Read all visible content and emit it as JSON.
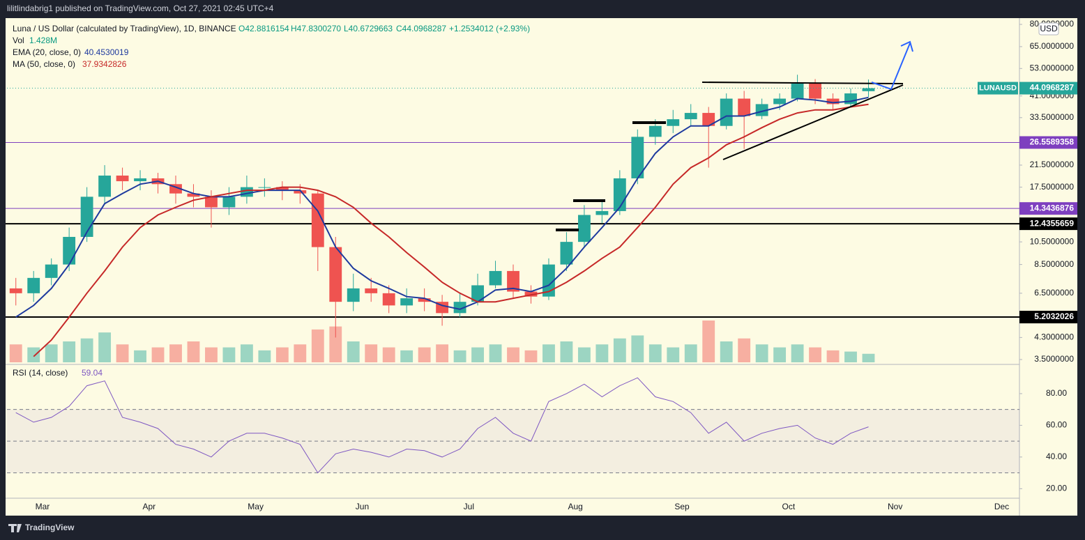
{
  "header": {
    "publisher": "lilitlindabrig1 published on TradingView.com, Oct 27, 2021 02:45 UTC+4",
    "brand": "TradingView",
    "currency_button": "USD"
  },
  "chart_data": [
    {
      "type": "candlestick",
      "title": "Luna / US Dollar (calculated by TradingView), 1D, BINANCE",
      "ohlc_texts": [
        "O42.8816154",
        "H47.8300270",
        "L40.6729663",
        "C44.0968287",
        "+1.2534012 (+2.93%)"
      ],
      "symbol": "LUNAUSD",
      "up_color": "#26a69a",
      "down_color": "#ef5350",
      "log_scale": true,
      "categories": [
        null,
        null,
        "Mar",
        null,
        null,
        null,
        null,
        null,
        "Apr",
        null,
        null,
        null,
        null,
        null,
        "May",
        null,
        null,
        null,
        null,
        null,
        "Jun",
        null,
        null,
        null,
        null,
        null,
        "Jul",
        null,
        null,
        null,
        null,
        null,
        "Aug",
        null,
        null,
        null,
        null,
        null,
        "Sep",
        null,
        null,
        null,
        null,
        null,
        "Oct",
        null,
        null,
        null,
        null,
        null,
        "Nov",
        null,
        null,
        null,
        null,
        null,
        "Dec"
      ],
      "open": [
        6.8,
        6.5,
        7.5,
        8.5,
        11,
        16,
        19.5,
        18.5,
        19,
        18,
        16.5,
        16,
        14.5,
        16,
        17.5,
        17.5,
        17,
        16.5,
        10,
        6,
        6.8,
        6.5,
        5.8,
        6.2,
        6,
        5.4,
        6,
        7,
        8,
        6.6,
        6.3,
        8.5,
        10.5,
        13.5,
        14,
        19,
        28,
        31,
        33,
        35,
        31,
        40,
        34,
        38,
        40,
        46,
        40,
        38,
        42.8816154,
        null,
        null,
        null,
        null,
        null,
        null,
        null,
        null
      ],
      "high": [
        7.5,
        8,
        9,
        12,
        17.5,
        21.5,
        21,
        20.5,
        20,
        19.5,
        18,
        17,
        17.5,
        19.5,
        19,
        18.5,
        18,
        17,
        11,
        7.8,
        7.5,
        7,
        6.8,
        6.8,
        6.4,
        6.5,
        7.8,
        8.8,
        8.5,
        7,
        9,
        11.5,
        14.8,
        15.5,
        20.5,
        30,
        33,
        36,
        38,
        37,
        42,
        43,
        40,
        42,
        50,
        48,
        42,
        44,
        47.83,
        null,
        null,
        null,
        null,
        null,
        null,
        null,
        null
      ],
      "low": [
        5.8,
        6,
        7,
        8,
        10.5,
        15,
        17,
        17,
        16.5,
        15,
        14.5,
        12,
        13.5,
        15,
        16,
        15.5,
        15,
        8,
        4.3,
        5.5,
        6,
        5.4,
        5.4,
        5.5,
        4.8,
        5.2,
        5.8,
        6.8,
        6.2,
        5.9,
        6.1,
        8,
        10,
        12.5,
        13.5,
        18,
        26,
        29,
        31,
        21,
        30,
        25,
        33,
        36,
        39,
        38,
        36,
        37,
        40.6729663,
        null,
        null,
        null,
        null,
        null,
        null,
        null,
        null
      ],
      "close": [
        6.5,
        7.5,
        8.5,
        11,
        16,
        19.5,
        18.5,
        19,
        18,
        16.5,
        16,
        14.5,
        16,
        17.5,
        17.5,
        17,
        16.5,
        10,
        6,
        6.8,
        6.5,
        5.8,
        6.2,
        6,
        5.4,
        6,
        7,
        8,
        6.6,
        6.3,
        8.5,
        10.5,
        13.5,
        14,
        19,
        28,
        31,
        33,
        35,
        31,
        40,
        34,
        38,
        40,
        46,
        40,
        38,
        42,
        44.0968287,
        null,
        null,
        null,
        null,
        null,
        null,
        null,
        null
      ],
      "volume": {
        "name": "Vol",
        "last_label": "1.428M",
        "values": [
          3,
          2.5,
          3,
          3.5,
          4,
          5,
          3,
          2,
          2.5,
          3,
          3.5,
          2.5,
          2.5,
          3,
          2,
          2.5,
          3,
          5.5,
          6,
          3.5,
          3,
          2.5,
          2,
          2.5,
          3,
          2,
          2.5,
          3,
          2.5,
          2,
          3,
          3.5,
          2.5,
          3,
          4,
          4.5,
          3,
          2.5,
          3,
          7,
          3.5,
          4,
          3,
          2.5,
          3,
          2.5,
          2,
          1.8,
          1.428,
          null,
          null,
          null,
          null,
          null,
          null,
          null,
          null
        ]
      },
      "series": [
        {
          "name": "EMA (20, close, 0)",
          "color": "#1e3a9e",
          "values": [
            5.2,
            5.8,
            6.8,
            8.5,
            11.5,
            15,
            16.5,
            18,
            18.5,
            17.5,
            16.5,
            16,
            16,
            16.5,
            17,
            17,
            17,
            14,
            10,
            8.2,
            7.3,
            6.8,
            6.3,
            6.2,
            5.8,
            5.6,
            6,
            6.7,
            6.8,
            6.6,
            7,
            8.2,
            10,
            12,
            14.5,
            19,
            24,
            28,
            31,
            31,
            34,
            34,
            35.5,
            37,
            40,
            39.5,
            38.5,
            39,
            40.4530019,
            null,
            null,
            null,
            null,
            null,
            null,
            null,
            null
          ]
        },
        {
          "name": "MA (50, close, 0)",
          "color": "#c62828",
          "values": [
            null,
            3.6,
            4.2,
            5.2,
            6.5,
            8,
            10,
            12,
            13.5,
            14.5,
            15.5,
            16,
            16.5,
            17,
            17,
            17.5,
            17.5,
            17,
            16,
            14.5,
            12.5,
            11,
            9.5,
            8.3,
            7.2,
            6.5,
            6,
            6,
            6.2,
            6.4,
            6.6,
            7.2,
            8,
            9,
            10,
            12,
            14.5,
            18,
            21,
            23,
            26,
            28,
            30.5,
            33,
            35,
            36,
            36,
            37,
            37.9342826,
            null,
            null,
            null,
            null,
            null,
            null,
            null,
            null
          ]
        }
      ],
      "levels": [
        {
          "value": 26.5589358,
          "color": "#7e3fbf"
        },
        {
          "value": 14.3436876,
          "color": "#7e3fbf"
        },
        {
          "value": 12.4355659,
          "color": "#000000"
        },
        {
          "value": 5.2032026,
          "color": "#000000"
        }
      ],
      "ylim": [
        3.5,
        80
      ],
      "yticks": [
        {
          "value": 80,
          "label": "80.0000000"
        },
        {
          "value": 65,
          "label": "65.0000000"
        },
        {
          "value": 53,
          "label": "53.0000000"
        },
        {
          "value": 41,
          "label": "41.0000000"
        },
        {
          "value": 33.5,
          "label": "33.5000000"
        },
        {
          "value": 21.5,
          "label": "21.5000000"
        },
        {
          "value": 17.5,
          "label": "17.5000000"
        },
        {
          "value": 10.5,
          "label": "10.5000000"
        },
        {
          "value": 8.5,
          "label": "8.5000000"
        },
        {
          "value": 6.5,
          "label": "6.5000000"
        },
        {
          "value": 4.3,
          "label": "4.3000000"
        },
        {
          "value": 3.5,
          "label": "3.5000000"
        }
      ]
    },
    {
      "type": "line",
      "series": [
        {
          "name": "RSI (14, close)",
          "color": "#7e57c2",
          "values": [
            68,
            62,
            65,
            72,
            85,
            88,
            65,
            62,
            58,
            48,
            45,
            40,
            50,
            55,
            55,
            52,
            48,
            30,
            42,
            45,
            43,
            40,
            45,
            44,
            40,
            45,
            58,
            65,
            55,
            50,
            75,
            80,
            86,
            78,
            85,
            90,
            78,
            75,
            68,
            55,
            62,
            50,
            55,
            58,
            60,
            52,
            48,
            55,
            59.04,
            null,
            null,
            null,
            null,
            null,
            null,
            null,
            null
          ]
        }
      ],
      "lower_band": 30,
      "middle_band": 50,
      "upper_band": 70,
      "ylim": [
        14,
        98
      ],
      "yticks": [
        {
          "value": 20,
          "label": "20.00"
        },
        {
          "value": 40,
          "label": "40.00"
        },
        {
          "value": 60,
          "label": "60.00"
        },
        {
          "value": 80,
          "label": "80.00"
        }
      ]
    }
  ]
}
